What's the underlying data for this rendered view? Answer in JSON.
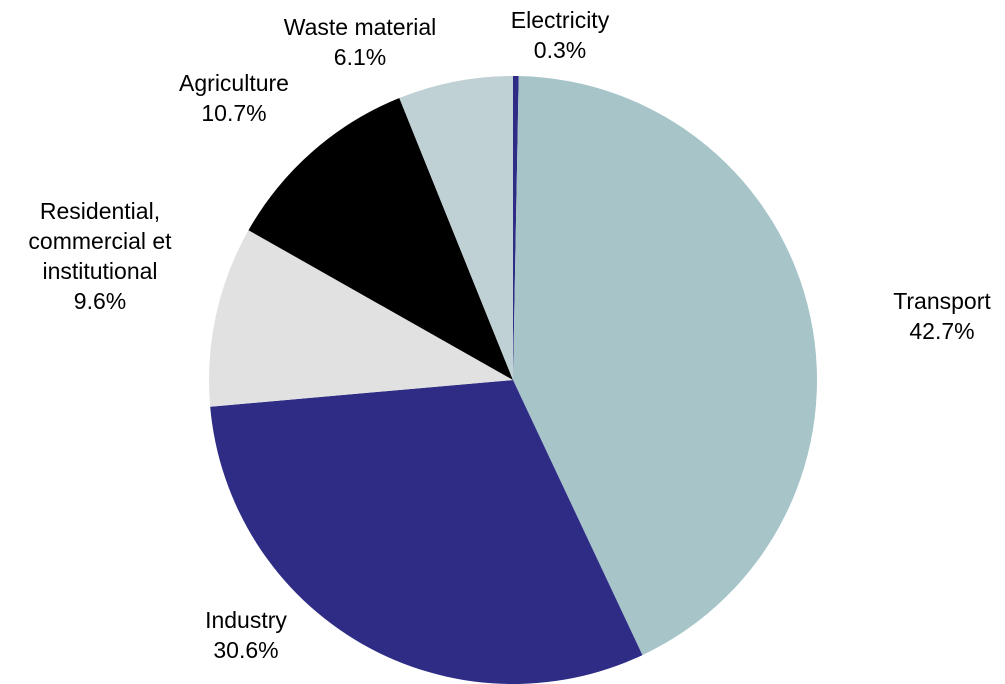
{
  "chart_data": {
    "type": "pie",
    "start": "Electricity, clockwise from 12 o'clock",
    "slices": [
      {
        "name": "Electricity",
        "value": 0.3,
        "label": "0.3%",
        "color": "#2e2c85"
      },
      {
        "name": "Transport",
        "value": 42.7,
        "label": "42.7%",
        "color": "#a7c5c9"
      },
      {
        "name": "Industry",
        "value": 30.6,
        "label": "30.6%",
        "color": "#2e2c85"
      },
      {
        "name": "Residential, commercial et institutional",
        "value": 9.6,
        "label": "9.6%",
        "color": "#e1e1e1"
      },
      {
        "name": "Agriculture",
        "value": 10.7,
        "label": "10.7%",
        "color": "#000000"
      },
      {
        "name": "Waste material",
        "value": 6.1,
        "label": "6.1%",
        "color": "#bfd1d4"
      }
    ]
  }
}
